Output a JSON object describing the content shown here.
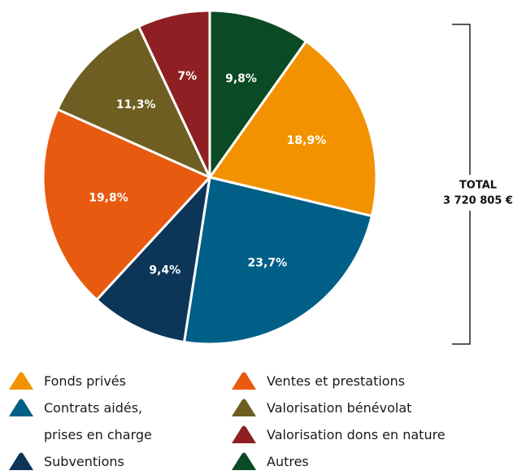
{
  "chart_data": {
    "type": "pie",
    "categories": [
      "Fonds privés",
      "Contrats aidés, prises en charge",
      "Subventions",
      "Ventes et prestations",
      "Valorisation bénévolat",
      "Valorisation dons en nature",
      "Autres"
    ],
    "values": [
      18.9,
      23.7,
      9.4,
      19.8,
      11.3,
      7,
      9.8
    ],
    "value_labels": [
      "18,9%",
      "23,7%",
      "9,4%",
      "19,8%",
      "11,3%",
      "7%",
      "9,8%"
    ],
    "colors": [
      "#f39200",
      "#005f87",
      "#0d3558",
      "#e85a0f",
      "#6f5e22",
      "#8e2023",
      "#0a4a24"
    ],
    "total": {
      "label": "TOTAL",
      "value": 3720805,
      "value_label": "3 720 805 €"
    }
  }
}
